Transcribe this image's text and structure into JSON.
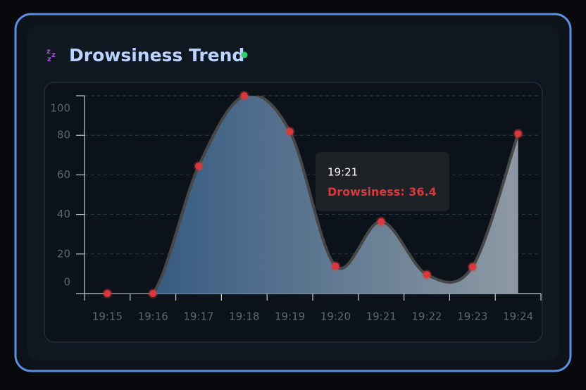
{
  "chart_data": {
    "type": "line",
    "title": "Drowsiness Trend",
    "categories": [
      "19:15",
      "19:16",
      "19:17",
      "19:18",
      "19:19",
      "19:20",
      "19:21",
      "19:22",
      "19:23",
      "19:24"
    ],
    "series": [
      {
        "name": "Drowsiness",
        "color": "#d9383c",
        "values": [
          0,
          0,
          64.4,
          100,
          81.9,
          13.9,
          36.4,
          9.6,
          13.5,
          80.8
        ]
      }
    ],
    "ylim": [
      0,
      100
    ],
    "yticks": [
      0,
      20,
      40,
      60,
      80,
      100
    ],
    "grid": true,
    "tooltip": {
      "category_index": 6
    }
  }
}
